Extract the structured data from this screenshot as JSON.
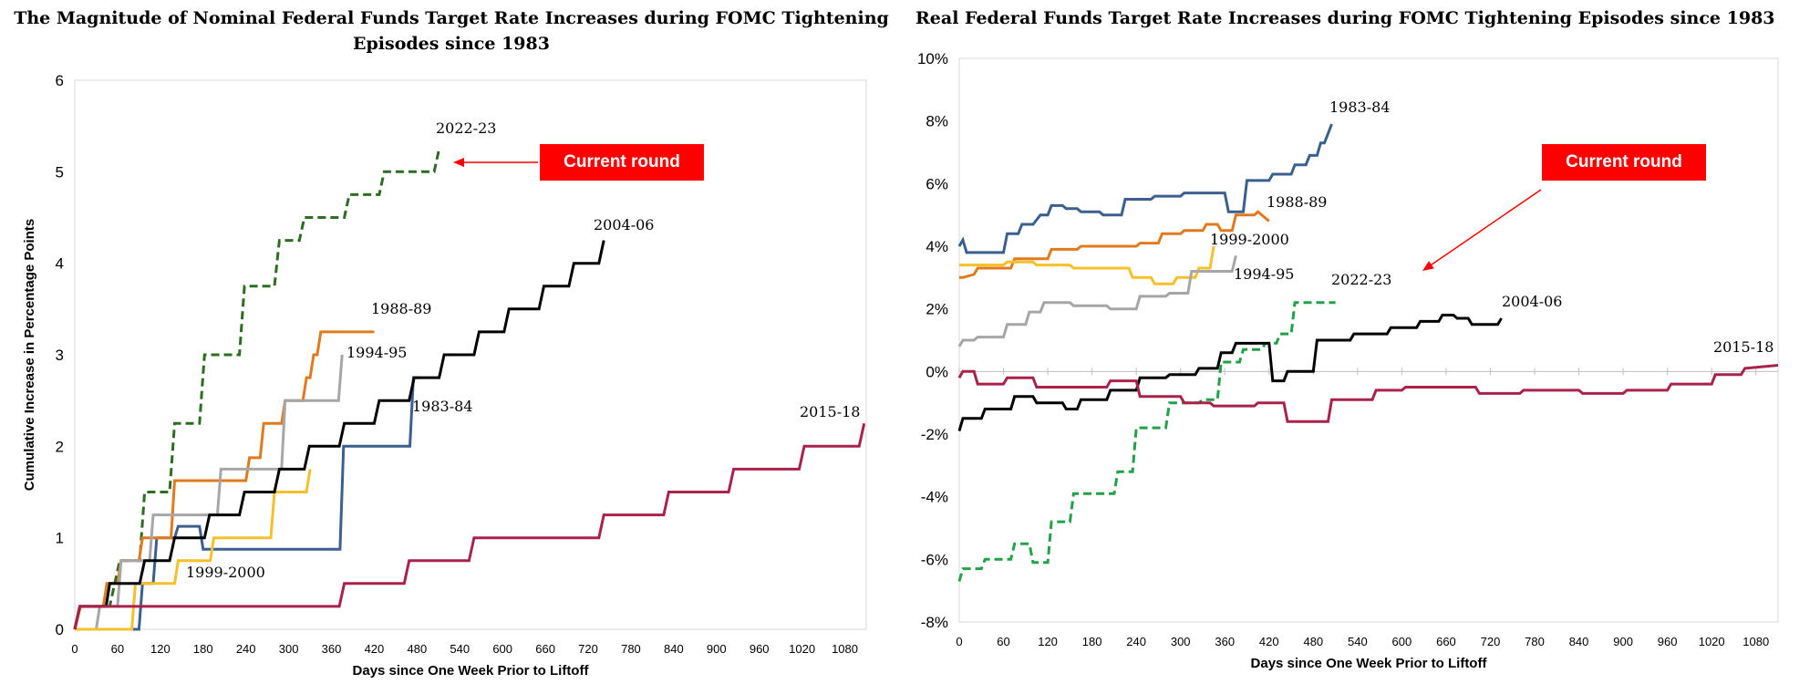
{
  "chart_data": [
    {
      "type": "line",
      "title": "The Magnitude of Nominal Federal Funds Target Rate Increases during FOMC Tightening Episodes since 1983",
      "xlabel": "Days since One Week Prior to Liftoff",
      "ylabel": "Cumulative Increase in Percentage Points",
      "xlim": [
        0,
        1110
      ],
      "ylim": [
        0,
        6
      ],
      "xticks": [
        0,
        60,
        120,
        180,
        240,
        300,
        360,
        420,
        480,
        540,
        600,
        660,
        720,
        780,
        840,
        900,
        960,
        1020,
        1080
      ],
      "yticks": [
        0,
        1,
        2,
        3,
        4,
        5,
        6
      ],
      "ytick_labels": [
        "0",
        "1",
        "2",
        "3",
        "4",
        "5",
        "6"
      ],
      "grid": false,
      "annotation": "Current round",
      "series": [
        {
          "name": "2022-23",
          "color": "#2e6b23",
          "dashed": true,
          "x": [
            0,
            7,
            49,
            56,
            63,
            91,
            98,
            133,
            140,
            175,
            182,
            231,
            238,
            280,
            287,
            315,
            322,
            378,
            385,
            427,
            434,
            504,
            511
          ],
          "y": [
            0,
            0.25,
            0.25,
            0.5,
            0.75,
            0.75,
            1.5,
            1.5,
            2.25,
            2.25,
            3.0,
            3.0,
            3.75,
            3.75,
            4.25,
            4.25,
            4.5,
            4.5,
            4.75,
            4.75,
            5.0,
            5.0,
            5.25
          ]
        },
        {
          "name": "1983-84",
          "color": "#3b5f8e",
          "dashed": false,
          "x": [
            0,
            90,
            95,
            110,
            115,
            140,
            145,
            175,
            180,
            372,
            377,
            470,
            475,
            485
          ],
          "y": [
            0,
            0,
            0.5,
            0.5,
            1.0,
            1.0,
            1.125,
            1.125,
            0.875,
            0.875,
            2.0,
            2.0,
            2.75,
            2.75
          ]
        },
        {
          "name": "1988-89",
          "color": "#e07a1f",
          "dashed": false,
          "x": [
            0,
            8,
            40,
            45,
            60,
            65,
            90,
            95,
            135,
            140,
            240,
            245,
            260,
            265,
            290,
            295,
            320,
            325,
            330,
            335,
            340,
            345,
            420
          ],
          "y": [
            0,
            0.25,
            0.25,
            0.5,
            0.5,
            0.75,
            0.75,
            1.0,
            1.0,
            1.625,
            1.625,
            1.875,
            1.875,
            2.25,
            2.25,
            2.5,
            2.5,
            2.75,
            2.75,
            3.0,
            3.0,
            3.25,
            3.25
          ]
        },
        {
          "name": "1994-95",
          "color": "#a6a6a6",
          "dashed": false,
          "x": [
            0,
            30,
            35,
            60,
            65,
            105,
            110,
            200,
            205,
            290,
            295,
            370,
            375
          ],
          "y": [
            0,
            0,
            0.25,
            0.25,
            0.75,
            0.75,
            1.25,
            1.25,
            1.75,
            1.75,
            2.5,
            2.5,
            3.0
          ]
        },
        {
          "name": "1999-2000",
          "color": "#f5c02a",
          "dashed": false,
          "x": [
            0,
            80,
            85,
            140,
            145,
            190,
            195,
            275,
            280,
            325,
            330
          ],
          "y": [
            0,
            0,
            0.5,
            0.5,
            0.75,
            0.75,
            1.0,
            1.0,
            1.5,
            1.5,
            1.75
          ]
        },
        {
          "name": "2004-06",
          "color": "#000000",
          "dashed": false,
          "x": [
            0,
            7,
            44,
            49,
            91,
            98,
            133,
            140,
            182,
            189,
            231,
            238,
            280,
            287,
            322,
            329,
            371,
            378,
            420,
            427,
            469,
            476,
            511,
            518,
            560,
            567,
            602,
            609,
            651,
            658,
            693,
            700,
            735,
            742
          ],
          "y": [
            0,
            0.25,
            0.25,
            0.5,
            0.5,
            0.75,
            0.75,
            1.0,
            1.0,
            1.25,
            1.25,
            1.5,
            1.5,
            1.75,
            1.75,
            2.0,
            2.0,
            2.25,
            2.25,
            2.5,
            2.5,
            2.75,
            2.75,
            3.0,
            3.0,
            3.25,
            3.25,
            3.5,
            3.5,
            3.75,
            3.75,
            4.0,
            4.0,
            4.25
          ]
        },
        {
          "name": "2015-18",
          "color": "#a8224a",
          "dashed": false,
          "x": [
            0,
            7,
            371,
            378,
            462,
            469,
            553,
            560,
            735,
            742,
            826,
            833,
            917,
            924,
            1016,
            1023,
            1100,
            1107
          ],
          "y": [
            0,
            0.25,
            0.25,
            0.5,
            0.5,
            0.75,
            0.75,
            1.0,
            1.0,
            1.25,
            1.25,
            1.5,
            1.5,
            1.75,
            1.75,
            2.0,
            2.0,
            2.25
          ]
        }
      ]
    },
    {
      "type": "line",
      "title": "Real Federal Funds Target Rate Increases during FOMC Tightening Episodes since 1983",
      "xlabel": "Days since One Week Prior to Liftoff",
      "ylabel": "",
      "xlim": [
        0,
        1110
      ],
      "ylim": [
        -8,
        10
      ],
      "xticks": [
        0,
        60,
        120,
        180,
        240,
        300,
        360,
        420,
        480,
        540,
        600,
        660,
        720,
        780,
        840,
        900,
        960,
        1020,
        1080
      ],
      "yticks": [
        -8,
        -6,
        -4,
        -2,
        0,
        2,
        4,
        6,
        8,
        10
      ],
      "ytick_labels": [
        "-8%",
        "-6%",
        "-4%",
        "-2%",
        "0%",
        "2%",
        "4%",
        "6%",
        "8%",
        "10%"
      ],
      "grid": false,
      "annotation": "Current round",
      "series": [
        {
          "name": "1983-84",
          "color": "#3b5f8e",
          "dashed": false,
          "x": [
            0,
            5,
            10,
            15,
            60,
            65,
            80,
            85,
            100,
            110,
            120,
            125,
            140,
            145,
            160,
            165,
            190,
            195,
            220,
            225,
            260,
            265,
            300,
            305,
            360,
            365,
            385,
            390,
            420,
            425,
            450,
            455,
            470,
            475,
            485,
            490,
            495,
            500,
            505
          ],
          "y": [
            4.0,
            4.2,
            3.8,
            3.8,
            3.8,
            4.4,
            4.4,
            4.7,
            4.7,
            5.0,
            5.0,
            5.3,
            5.3,
            5.2,
            5.2,
            5.1,
            5.1,
            5.0,
            5.0,
            5.5,
            5.5,
            5.6,
            5.6,
            5.7,
            5.7,
            5.1,
            5.1,
            6.1,
            6.1,
            6.3,
            6.3,
            6.6,
            6.6,
            6.9,
            6.9,
            7.3,
            7.3,
            7.6,
            7.9
          ]
        },
        {
          "name": "1988-89",
          "color": "#e07a1f",
          "dashed": false,
          "x": [
            0,
            5,
            20,
            25,
            70,
            75,
            120,
            125,
            160,
            165,
            240,
            245,
            270,
            275,
            300,
            305,
            330,
            335,
            350,
            355,
            370,
            375,
            400,
            405,
            420
          ],
          "y": [
            3.0,
            3.0,
            3.1,
            3.3,
            3.3,
            3.6,
            3.6,
            3.9,
            3.9,
            4.0,
            4.0,
            4.1,
            4.1,
            4.4,
            4.4,
            4.5,
            4.5,
            4.7,
            4.7,
            4.5,
            4.5,
            5.0,
            5.0,
            5.1,
            4.8
          ]
        },
        {
          "name": "1999-2000",
          "color": "#f5c02a",
          "dashed": false,
          "x": [
            0,
            5,
            60,
            65,
            100,
            105,
            150,
            155,
            230,
            235,
            260,
            265,
            290,
            295,
            320,
            325,
            340,
            345
          ],
          "y": [
            3.4,
            3.4,
            3.4,
            3.5,
            3.5,
            3.4,
            3.4,
            3.3,
            3.3,
            3.0,
            3.0,
            2.8,
            2.8,
            3.0,
            3.0,
            3.3,
            3.3,
            4.0
          ]
        },
        {
          "name": "1994-95",
          "color": "#a6a6a6",
          "dashed": false,
          "x": [
            0,
            5,
            20,
            25,
            60,
            65,
            90,
            95,
            110,
            115,
            150,
            155,
            200,
            205,
            240,
            245,
            280,
            285,
            310,
            315,
            370,
            375
          ],
          "y": [
            0.8,
            1.0,
            1.0,
            1.1,
            1.1,
            1.5,
            1.5,
            1.9,
            1.9,
            2.2,
            2.2,
            2.1,
            2.1,
            2.0,
            2.0,
            2.4,
            2.4,
            2.5,
            2.5,
            3.2,
            3.2,
            3.7
          ]
        },
        {
          "name": "2022-23",
          "color": "#22a04a",
          "dashed": true,
          "x": [
            0,
            5,
            30,
            35,
            70,
            75,
            95,
            100,
            120,
            125,
            150,
            155,
            210,
            215,
            235,
            240,
            280,
            285,
            325,
            330,
            350,
            355,
            380,
            385,
            410,
            415,
            430,
            435,
            450,
            455,
            470,
            475,
            510
          ],
          "y": [
            -6.7,
            -6.3,
            -6.3,
            -6.0,
            -6.0,
            -5.5,
            -5.5,
            -6.1,
            -6.1,
            -4.8,
            -4.8,
            -3.9,
            -3.9,
            -3.2,
            -3.2,
            -1.8,
            -1.8,
            -1.0,
            -1.0,
            -0.9,
            -0.9,
            0.3,
            0.3,
            0.7,
            0.7,
            0.9,
            0.9,
            1.2,
            1.2,
            2.2,
            2.2,
            2.2,
            2.2
          ]
        },
        {
          "name": "2004-06",
          "color": "#000000",
          "dashed": false,
          "x": [
            0,
            5,
            30,
            35,
            70,
            75,
            100,
            105,
            140,
            145,
            160,
            165,
            200,
            205,
            240,
            245,
            280,
            285,
            320,
            325,
            350,
            355,
            370,
            375,
            420,
            425,
            440,
            445,
            480,
            485,
            530,
            535,
            580,
            585,
            620,
            625,
            650,
            655,
            670,
            675,
            690,
            695,
            730,
            735
          ],
          "y": [
            -1.9,
            -1.5,
            -1.5,
            -1.2,
            -1.2,
            -0.8,
            -0.8,
            -1.0,
            -1.0,
            -1.2,
            -1.2,
            -0.9,
            -0.9,
            -0.6,
            -0.6,
            -0.2,
            -0.2,
            -0.1,
            -0.1,
            0.1,
            0.1,
            0.6,
            0.6,
            0.9,
            0.9,
            -0.3,
            -0.3,
            0.0,
            0.0,
            1.0,
            1.0,
            1.2,
            1.2,
            1.4,
            1.4,
            1.6,
            1.6,
            1.8,
            1.8,
            1.7,
            1.7,
            1.5,
            1.5,
            1.7
          ]
        },
        {
          "name": "2015-18",
          "color": "#a8224a",
          "dashed": false,
          "x": [
            0,
            5,
            20,
            25,
            60,
            65,
            100,
            105,
            200,
            205,
            240,
            245,
            300,
            305,
            340,
            345,
            400,
            405,
            440,
            445,
            500,
            505,
            560,
            565,
            600,
            605,
            700,
            705,
            760,
            765,
            840,
            845,
            900,
            905,
            960,
            965,
            1020,
            1025,
            1060,
            1065,
            1110
          ],
          "y": [
            -0.2,
            0.0,
            0.0,
            -0.4,
            -0.4,
            -0.2,
            -0.2,
            -0.5,
            -0.5,
            -0.3,
            -0.3,
            -0.8,
            -0.8,
            -1.0,
            -1.0,
            -1.1,
            -1.1,
            -1.0,
            -1.0,
            -1.6,
            -1.6,
            -0.9,
            -0.9,
            -0.6,
            -0.6,
            -0.5,
            -0.5,
            -0.7,
            -0.7,
            -0.6,
            -0.6,
            -0.7,
            -0.7,
            -0.6,
            -0.6,
            -0.4,
            -0.4,
            -0.1,
            -0.1,
            0.1,
            0.2
          ]
        }
      ]
    }
  ],
  "labels": {
    "left": [
      "2022-23",
      "2004-06",
      "1988-89",
      "1994-95",
      "1983-84",
      "1999-2000",
      "2015-18"
    ],
    "right": [
      "1983-84",
      "1988-89",
      "1999-2000",
      "1994-95",
      "2022-23",
      "2004-06",
      "2015-18"
    ]
  },
  "colors": {
    "callout_bg": "#ff0000",
    "callout_text": "#ffffff",
    "arrow": "#ff0000"
  }
}
